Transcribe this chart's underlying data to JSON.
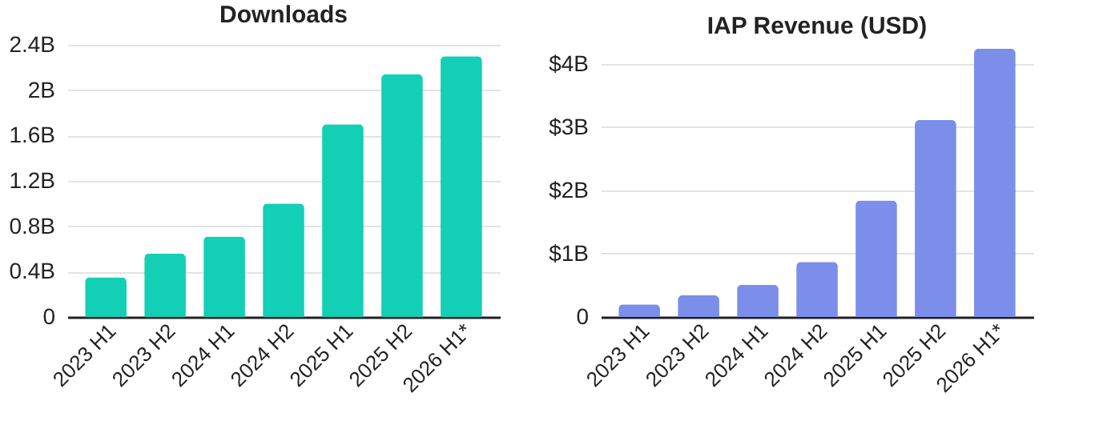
{
  "chart_data": [
    {
      "type": "bar",
      "title": "Downloads",
      "categories": [
        "2023 H1",
        "2023 H2",
        "2024 H1",
        "2024 H2",
        "2025 H1",
        "2025 H2",
        "2026 H1*"
      ],
      "series": [
        {
          "color": "#12cfb6",
          "values": [
            0.35,
            0.56,
            0.71,
            1.0,
            1.7,
            2.14,
            2.3
          ]
        }
      ],
      "ylim": [
        0,
        2.4
      ],
      "yticks": [
        {
          "value": 0,
          "label": "0"
        },
        {
          "value": 0.4,
          "label": "0.4B"
        },
        {
          "value": 0.8,
          "label": "0.8B"
        },
        {
          "value": 1.2,
          "label": "1.2B"
        },
        {
          "value": 1.6,
          "label": "1.6B"
        },
        {
          "value": 2,
          "label": "2B"
        },
        {
          "value": 2.4,
          "label": "2.4B"
        }
      ],
      "grid": "y",
      "legend": false
    },
    {
      "type": "bar",
      "title": "IAP Revenue (USD)",
      "categories": [
        "2023 H1",
        "2023 H2",
        "2024 H1",
        "2024 H2",
        "2025 H1",
        "2025 H2",
        "2026 H1*"
      ],
      "series": [
        {
          "color": "#7b8ee9",
          "values": [
            0.2,
            0.34,
            0.51,
            0.87,
            1.84,
            3.11,
            4.24
          ]
        }
      ],
      "ylim": [
        0,
        4.3
      ],
      "yticks": [
        {
          "value": 0,
          "label": "0"
        },
        {
          "value": 1,
          "label": "$1B"
        },
        {
          "value": 2,
          "label": "$2B"
        },
        {
          "value": 3,
          "label": "$3B"
        },
        {
          "value": 4,
          "label": "$4B"
        }
      ],
      "grid": "y",
      "legend": false
    }
  ]
}
